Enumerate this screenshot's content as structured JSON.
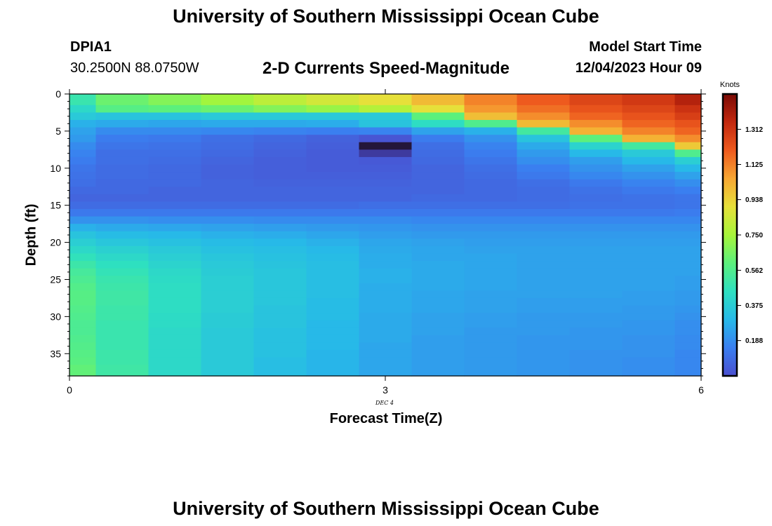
{
  "header": {
    "title": "University of Southern Mississippi Ocean Cube",
    "station_id": "DPIA1",
    "coordinates": "30.2500N  88.0750W",
    "subtitle": "2-D Currents Speed-Magnitude",
    "model_start_label": "Model Start Time",
    "model_start_value": "12/04/2023 Hour 09"
  },
  "footer": {
    "title": "University of Southern Mississippi Ocean Cube"
  },
  "colors": {
    "background": "#ffffff",
    "text": "#000000",
    "colormap": [
      "#4a4fcf",
      "#3a7ff0",
      "#27b9e8",
      "#2ee0c0",
      "#5cf07c",
      "#a7f53a",
      "#e6e03a",
      "#f7a733",
      "#ee5a1e",
      "#c2280f",
      "#7a0a05"
    ]
  },
  "chart_data": {
    "type": "heatmap",
    "title": "2-D Currents Speed-Magnitude",
    "xlabel": "Forecast Time(Z)",
    "ylabel": "Depth (ft)",
    "x_note": "DEC 4",
    "xlim": [
      0,
      6
    ],
    "ylim": [
      0,
      38
    ],
    "y_inverted": true,
    "x_ticks": [
      0,
      3,
      6
    ],
    "y_ticks": [
      0,
      5,
      10,
      15,
      20,
      25,
      30,
      35
    ],
    "colorbar": {
      "label": "Knots",
      "range": [
        0,
        1.5
      ],
      "ticks": [
        0.188,
        0.375,
        0.562,
        0.75,
        0.938,
        1.125,
        1.312
      ],
      "tick_labels": [
        "0.188",
        "0.375",
        "0.562",
        "0.750",
        "0.938",
        "1.125",
        "1.312"
      ]
    },
    "time_edges": [
      0,
      0.25,
      0.75,
      1.25,
      1.75,
      2.25,
      2.75,
      3.25,
      3.75,
      4.25,
      4.75,
      5.25,
      5.75,
      6.0
    ],
    "depth_edges": [
      0,
      1.5,
      2.5,
      3.5,
      4.5,
      5.5,
      6.5,
      7.5,
      8.5,
      9.5,
      10.5,
      11.5,
      12.5,
      13.5,
      14.5,
      15.5,
      16.5,
      17.5,
      18.5,
      19.5,
      20.5,
      21.5,
      22.5,
      23.5,
      24.5,
      25.5,
      26.5,
      27.5,
      28.5,
      29.5,
      30.5,
      31.5,
      32.5,
      33.5,
      34.5,
      35.5,
      36.5,
      38.0
    ],
    "speed_knots": [
      [
        0.49,
        0.63,
        0.68,
        0.74,
        0.8,
        0.85,
        0.9,
        1.0,
        1.12,
        1.2,
        1.26,
        1.3,
        1.38
      ],
      [
        0.42,
        0.58,
        0.6,
        0.63,
        0.68,
        0.72,
        0.78,
        0.9,
        1.08,
        1.16,
        1.22,
        1.26,
        1.32
      ],
      [
        0.36,
        0.34,
        0.34,
        0.36,
        0.36,
        0.36,
        0.36,
        0.6,
        0.99,
        1.1,
        1.18,
        1.22,
        1.28
      ],
      [
        0.28,
        0.26,
        0.25,
        0.26,
        0.26,
        0.27,
        0.34,
        0.44,
        0.56,
        1.0,
        1.1,
        1.18,
        1.22
      ],
      [
        0.24,
        0.18,
        0.18,
        0.17,
        0.16,
        0.15,
        0.16,
        0.24,
        0.28,
        0.52,
        1.02,
        1.12,
        1.18
      ],
      [
        0.22,
        0.14,
        0.13,
        0.1,
        0.08,
        0.06,
        0.02,
        0.14,
        0.2,
        0.34,
        0.6,
        1.02,
        1.1
      ],
      [
        0.18,
        0.12,
        0.11,
        0.09,
        0.07,
        0.05,
        -0.2,
        0.1,
        0.16,
        0.26,
        0.4,
        0.52,
        0.96
      ],
      [
        0.16,
        0.1,
        0.1,
        0.08,
        0.06,
        0.04,
        -0.08,
        0.09,
        0.14,
        0.22,
        0.3,
        0.36,
        0.56
      ],
      [
        0.14,
        0.1,
        0.09,
        0.07,
        0.05,
        0.04,
        0.03,
        0.08,
        0.12,
        0.19,
        0.23,
        0.3,
        0.38
      ],
      [
        0.12,
        0.09,
        0.08,
        0.06,
        0.05,
        0.04,
        0.04,
        0.07,
        0.1,
        0.15,
        0.2,
        0.24,
        0.3
      ],
      [
        0.11,
        0.09,
        0.08,
        0.06,
        0.05,
        0.05,
        0.05,
        0.07,
        0.09,
        0.13,
        0.17,
        0.2,
        0.24
      ],
      [
        0.1,
        0.08,
        0.08,
        0.07,
        0.06,
        0.06,
        0.06,
        0.07,
        0.08,
        0.1,
        0.13,
        0.16,
        0.19
      ],
      [
        0.08,
        0.08,
        0.07,
        0.07,
        0.07,
        0.07,
        0.07,
        0.07,
        0.08,
        0.09,
        0.11,
        0.13,
        0.15
      ],
      [
        0.07,
        0.07,
        0.07,
        0.07,
        0.07,
        0.07,
        0.07,
        0.08,
        0.08,
        0.09,
        0.1,
        0.11,
        0.12
      ],
      [
        0.09,
        0.09,
        0.09,
        0.09,
        0.09,
        0.09,
        0.1,
        0.1,
        0.1,
        0.1,
        0.11,
        0.11,
        0.12
      ],
      [
        0.13,
        0.13,
        0.13,
        0.13,
        0.13,
        0.13,
        0.13,
        0.13,
        0.13,
        0.13,
        0.13,
        0.13,
        0.14
      ],
      [
        0.2,
        0.2,
        0.19,
        0.19,
        0.18,
        0.18,
        0.18,
        0.17,
        0.17,
        0.17,
        0.17,
        0.17,
        0.17
      ],
      [
        0.28,
        0.26,
        0.25,
        0.24,
        0.23,
        0.22,
        0.21,
        0.2,
        0.2,
        0.2,
        0.2,
        0.2,
        0.2
      ],
      [
        0.34,
        0.31,
        0.3,
        0.28,
        0.27,
        0.25,
        0.23,
        0.22,
        0.22,
        0.22,
        0.22,
        0.22,
        0.22
      ],
      [
        0.38,
        0.35,
        0.33,
        0.31,
        0.3,
        0.28,
        0.25,
        0.24,
        0.23,
        0.23,
        0.23,
        0.23,
        0.23
      ],
      [
        0.42,
        0.39,
        0.36,
        0.33,
        0.32,
        0.3,
        0.26,
        0.25,
        0.24,
        0.24,
        0.24,
        0.24,
        0.24
      ],
      [
        0.46,
        0.42,
        0.38,
        0.35,
        0.33,
        0.31,
        0.27,
        0.25,
        0.25,
        0.24,
        0.24,
        0.24,
        0.24
      ],
      [
        0.5,
        0.45,
        0.4,
        0.36,
        0.34,
        0.32,
        0.27,
        0.26,
        0.25,
        0.24,
        0.24,
        0.24,
        0.24
      ],
      [
        0.53,
        0.47,
        0.42,
        0.37,
        0.35,
        0.32,
        0.28,
        0.26,
        0.25,
        0.24,
        0.24,
        0.24,
        0.24
      ],
      [
        0.55,
        0.49,
        0.43,
        0.38,
        0.35,
        0.32,
        0.28,
        0.26,
        0.25,
        0.24,
        0.24,
        0.24,
        0.23
      ],
      [
        0.57,
        0.5,
        0.44,
        0.38,
        0.35,
        0.32,
        0.27,
        0.26,
        0.25,
        0.24,
        0.24,
        0.24,
        0.23
      ],
      [
        0.58,
        0.51,
        0.44,
        0.38,
        0.35,
        0.32,
        0.27,
        0.25,
        0.24,
        0.24,
        0.24,
        0.23,
        0.22
      ],
      [
        0.58,
        0.51,
        0.44,
        0.38,
        0.35,
        0.31,
        0.27,
        0.25,
        0.24,
        0.23,
        0.23,
        0.23,
        0.22
      ],
      [
        0.57,
        0.5,
        0.44,
        0.38,
        0.34,
        0.31,
        0.27,
        0.25,
        0.24,
        0.23,
        0.23,
        0.22,
        0.21
      ],
      [
        0.56,
        0.5,
        0.43,
        0.37,
        0.34,
        0.31,
        0.26,
        0.24,
        0.23,
        0.22,
        0.22,
        0.22,
        0.2
      ],
      [
        0.55,
        0.49,
        0.43,
        0.37,
        0.34,
        0.3,
        0.26,
        0.24,
        0.23,
        0.22,
        0.22,
        0.21,
        0.19
      ],
      [
        0.55,
        0.49,
        0.42,
        0.36,
        0.33,
        0.3,
        0.26,
        0.24,
        0.22,
        0.22,
        0.21,
        0.21,
        0.19
      ],
      [
        0.56,
        0.49,
        0.42,
        0.36,
        0.33,
        0.3,
        0.26,
        0.23,
        0.22,
        0.21,
        0.21,
        0.2,
        0.18
      ],
      [
        0.57,
        0.49,
        0.42,
        0.36,
        0.33,
        0.3,
        0.25,
        0.23,
        0.22,
        0.21,
        0.21,
        0.2,
        0.18
      ],
      [
        0.58,
        0.5,
        0.42,
        0.36,
        0.33,
        0.29,
        0.25,
        0.23,
        0.22,
        0.21,
        0.2,
        0.2,
        0.17
      ],
      [
        0.59,
        0.5,
        0.42,
        0.36,
        0.32,
        0.29,
        0.25,
        0.23,
        0.22,
        0.21,
        0.2,
        0.19,
        0.17
      ],
      [
        0.61,
        0.51,
        0.42,
        0.36,
        0.32,
        0.29,
        0.25,
        0.23,
        0.22,
        0.21,
        0.2,
        0.19,
        0.17
      ]
    ]
  }
}
